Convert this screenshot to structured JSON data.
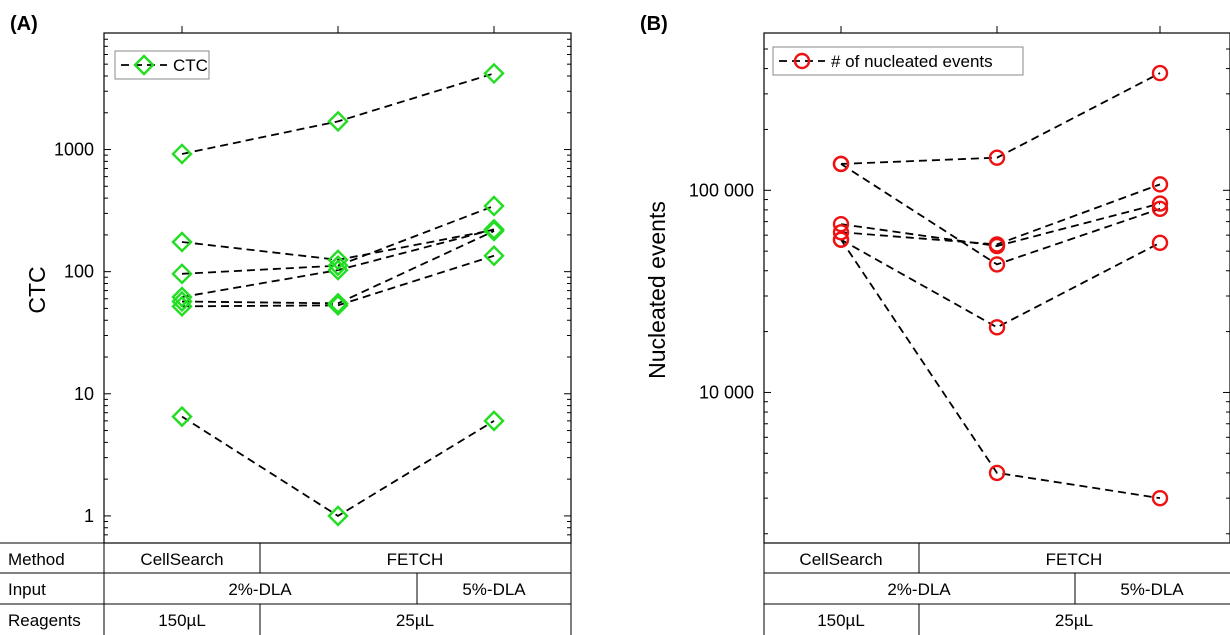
{
  "chart_data": [
    {
      "panel_label": "(A)",
      "type": "line",
      "scale": "log",
      "ylabel": "CTC",
      "yticks": [
        1,
        10,
        100,
        1000
      ],
      "ytick_labels": [
        "1",
        "10",
        "100",
        "1000"
      ],
      "ylim": [
        0.6,
        9000
      ],
      "categories": [
        "CellSearch",
        "FETCH 2%-DLA",
        "FETCH 5%-DLA"
      ],
      "legend": {
        "label": "CTC",
        "position": "top-left"
      },
      "marker": "diamond",
      "color": "#22dd22",
      "series": [
        {
          "values": [
            920,
            1700,
            4200
          ]
        },
        {
          "values": [
            175,
            125,
            220
          ]
        },
        {
          "values": [
            96,
            112,
            345
          ]
        },
        {
          "values": [
            62,
            103,
            222
          ]
        },
        {
          "values": [
            57,
            55,
            215
          ]
        },
        {
          "values": [
            52,
            53,
            135
          ]
        },
        {
          "values": [
            6.5,
            1,
            6
          ]
        }
      ]
    },
    {
      "panel_label": "(B)",
      "type": "line",
      "scale": "log",
      "ylabel": "Nucleated events",
      "yticks": [
        10000,
        100000
      ],
      "ytick_labels": [
        "10 000",
        "100 000"
      ],
      "ylim": [
        1800,
        600000
      ],
      "categories": [
        "CellSearch",
        "FETCH 2%-DLA",
        "FETCH 5%-DLA"
      ],
      "legend": {
        "label": "# of nucleated events",
        "position": "top-left"
      },
      "marker": "circle",
      "color": "#ee1111",
      "series": [
        {
          "values": [
            135000,
            145000,
            380000
          ]
        },
        {
          "values": [
            135000,
            43000,
            81000
          ]
        },
        {
          "values": [
            68000,
            53000,
            86000
          ]
        },
        {
          "values": [
            62000,
            54000,
            107000
          ]
        },
        {
          "values": [
            57000,
            21000,
            55000
          ]
        },
        {
          "values": [
            57000,
            4000,
            3000
          ]
        }
      ]
    }
  ],
  "table": {
    "row_labels": [
      "Method",
      "Input",
      "Reagents"
    ],
    "method": [
      "CellSearch",
      "FETCH"
    ],
    "input": [
      "2%-DLA",
      "5%-DLA"
    ],
    "reagents": [
      "150µL",
      "25µL"
    ]
  }
}
